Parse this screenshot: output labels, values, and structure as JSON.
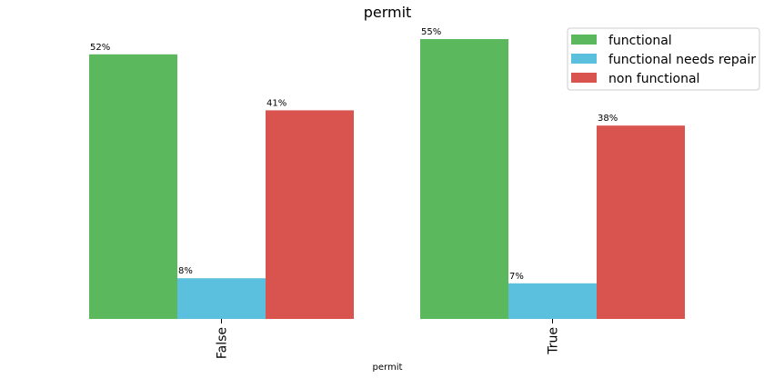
{
  "chart_data": {
    "type": "bar",
    "title": "permit",
    "xlabel": "permit",
    "ylabel": "",
    "categories": [
      "False",
      "True"
    ],
    "series": [
      {
        "name": "functional",
        "values": [
          52,
          55
        ],
        "labels": [
          "52%",
          "55%"
        ],
        "color": "#5cb85c"
      },
      {
        "name": "functional needs repair",
        "values": [
          8,
          7
        ],
        "labels": [
          "8%",
          "7%"
        ],
        "color": "#5bc0de"
      },
      {
        "name": "non functional",
        "values": [
          41,
          38
        ],
        "labels": [
          "41%",
          "38%"
        ],
        "color": "#d9534f"
      }
    ],
    "ylim": [
      0,
      57
    ],
    "grid": false,
    "legend_position": "top-right",
    "x_tick_rotation": "vertical"
  }
}
